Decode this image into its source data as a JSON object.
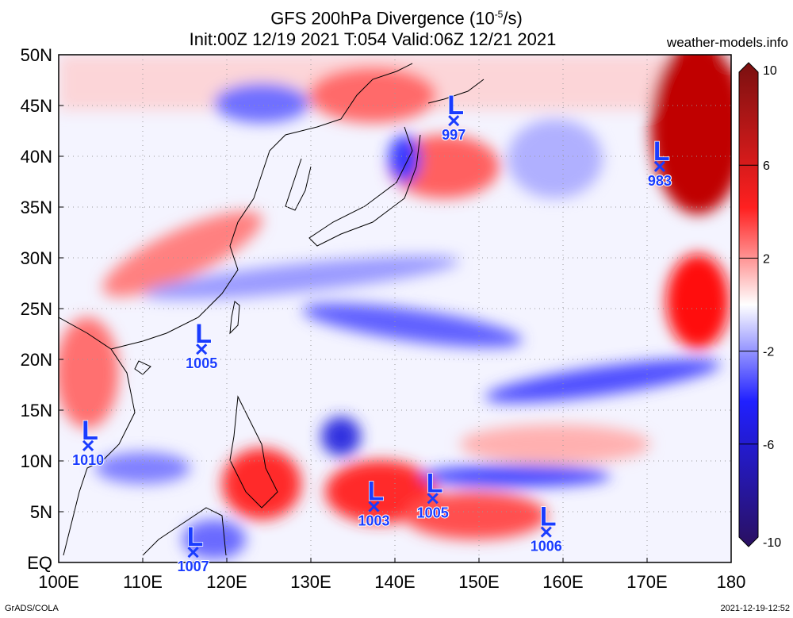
{
  "title": {
    "line1_prefix": "GFS 200hPa Divergence (10",
    "line1_sup": "-5",
    "line1_suffix": "/s)",
    "line2": "Init:00Z 12/19 2021 T:054 Valid:06Z 12/21 2021"
  },
  "website": "weather-models.info",
  "footer": {
    "left": "GrADS/COLA",
    "right": "2021-12-19-12:52"
  },
  "map": {
    "lon_range": [
      100,
      180
    ],
    "lat_range": [
      0,
      50
    ],
    "lon_ticks": [
      "100E",
      "110E",
      "120E",
      "130E",
      "140E",
      "150E",
      "160E",
      "170E",
      "180"
    ],
    "lat_ticks": [
      "EQ",
      "5N",
      "10N",
      "15N",
      "20N",
      "25N",
      "30N",
      "35N",
      "40N",
      "45N",
      "50N"
    ],
    "grid": true
  },
  "colorbar": {
    "range": [
      -10,
      10
    ],
    "tick_labels": [
      "10",
      "6",
      "2",
      "-2",
      "-6",
      "-10"
    ],
    "colors": {
      "max": "#7a1010",
      "high": "#ff2020",
      "neutral": "#ffffff",
      "low": "#2020ff",
      "min": "#2a1060"
    }
  },
  "lows": [
    {
      "lon": 147,
      "lat": 43.5,
      "pressure": "997"
    },
    {
      "lon": 171.5,
      "lat": 39,
      "pressure": "983"
    },
    {
      "lon": 117,
      "lat": 21,
      "pressure": "1005"
    },
    {
      "lon": 103.5,
      "lat": 11.5,
      "pressure": "1010"
    },
    {
      "lon": 137.5,
      "lat": 5.5,
      "pressure": "1003"
    },
    {
      "lon": 144.5,
      "lat": 6.3,
      "pressure": "1005"
    },
    {
      "lon": 158,
      "lat": 3,
      "pressure": "1006"
    },
    {
      "lon": 116,
      "lat": 1,
      "pressure": "1007"
    }
  ],
  "low_symbol": {
    "letter": "L",
    "color": "#1a3cff"
  }
}
